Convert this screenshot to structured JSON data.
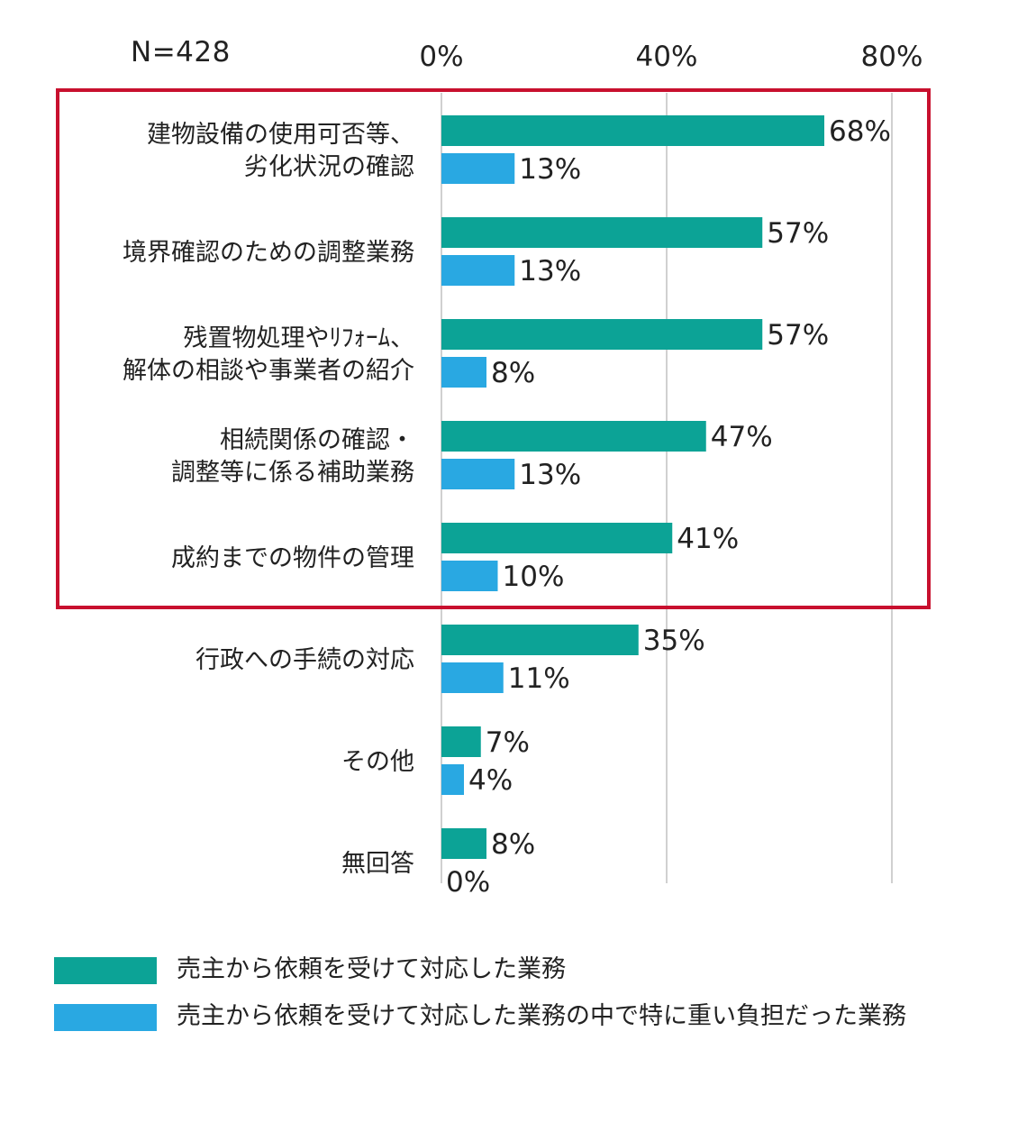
{
  "sample_label": "N=428",
  "colors": {
    "series_1": "#0ca396",
    "series_2": "#29a8e2",
    "highlight_box": "#c8102e",
    "gridline": "#b0b0b0"
  },
  "chart_data": {
    "type": "bar",
    "orientation": "horizontal",
    "title": "",
    "xlim": [
      0,
      100
    ],
    "xticks": [
      0,
      40,
      80
    ],
    "xtick_labels": [
      "0%",
      "40%",
      "80%"
    ],
    "gridlines": [
      0,
      40,
      80
    ],
    "categories": [
      [
        "建物設備の使用可否等、",
        "劣化状況の確認"
      ],
      [
        "境界確認のための調整業務"
      ],
      [
        "残置物処理やﾘﾌｫｰﾑ、",
        "解体の相談や事業者の紹介"
      ],
      [
        "相続関係の確認・",
        "調整等に係る補助業務"
      ],
      [
        "成約までの物件の管理"
      ],
      [
        "行政への手続の対応"
      ],
      [
        "その他"
      ],
      [
        "無回答"
      ]
    ],
    "series": [
      {
        "name": "売主から依頼を受けて対応した業務",
        "values": [
          68,
          57,
          57,
          47,
          41,
          35,
          7,
          8
        ],
        "labels": [
          "68%",
          "57%",
          "57%",
          "47%",
          "41%",
          "35%",
          "7%",
          "8%"
        ]
      },
      {
        "name": "売主から依頼を受けて対応した業務の中で特に重い負担だった業務",
        "values": [
          13,
          13,
          8,
          13,
          10,
          11,
          4,
          0
        ],
        "labels": [
          "13%",
          "13%",
          "8%",
          "13%",
          "10%",
          "11%",
          "4%",
          "0%"
        ]
      }
    ],
    "highlighted_categories": [
      0,
      1,
      2,
      3,
      4
    ],
    "legend_position": "bottom-left"
  }
}
